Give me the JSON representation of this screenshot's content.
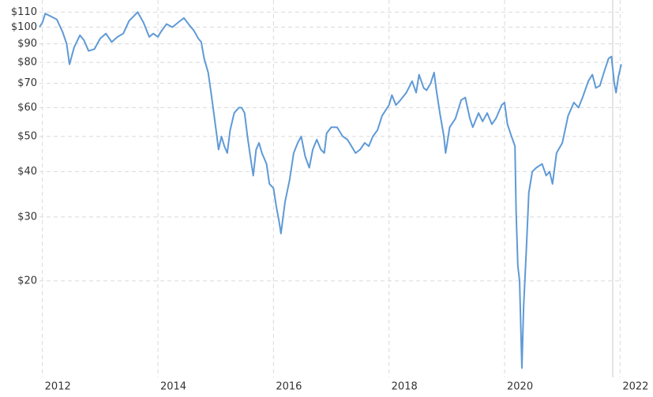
{
  "chart_data": {
    "type": "line",
    "log_scale": true,
    "grid": true,
    "color": "#5f9ad6",
    "x": [
      2011.95,
      2012.0,
      2012.05,
      2012.15,
      2012.25,
      2012.35,
      2012.42,
      2012.47,
      2012.55,
      2012.65,
      2012.72,
      2012.8,
      2012.9,
      2013.0,
      2013.1,
      2013.2,
      2013.3,
      2013.4,
      2013.5,
      2013.6,
      2013.65,
      2013.75,
      2013.85,
      2013.92,
      2014.0,
      2014.05,
      2014.15,
      2014.25,
      2014.35,
      2014.45,
      2014.55,
      2014.62,
      2014.7,
      2014.75,
      2014.8,
      2014.87,
      2014.92,
      2015.0,
      2015.05,
      2015.1,
      2015.15,
      2015.2,
      2015.25,
      2015.32,
      2015.4,
      2015.45,
      2015.5,
      2015.55,
      2015.6,
      2015.65,
      2015.7,
      2015.75,
      2015.8,
      2015.88,
      2015.93,
      2016.0,
      2016.05,
      2016.1,
      2016.13,
      2016.2,
      2016.28,
      2016.35,
      2016.42,
      2016.48,
      2016.55,
      2016.62,
      2016.68,
      2016.75,
      2016.82,
      2016.88,
      2016.92,
      2017.0,
      2017.1,
      2017.2,
      2017.28,
      2017.35,
      2017.42,
      2017.5,
      2017.58,
      2017.65,
      2017.72,
      2017.8,
      2017.88,
      2018.0,
      2018.05,
      2018.12,
      2018.2,
      2018.3,
      2018.4,
      2018.47,
      2018.52,
      2018.6,
      2018.65,
      2018.72,
      2018.78,
      2018.82,
      2018.88,
      2018.95,
      2018.98,
      2019.05,
      2019.15,
      2019.25,
      2019.32,
      2019.4,
      2019.45,
      2019.55,
      2019.62,
      2019.7,
      2019.78,
      2019.85,
      2019.95,
      2020.0,
      2020.05,
      2020.12,
      2020.18,
      2020.2,
      2020.23,
      2020.26,
      2020.3,
      2020.33,
      2020.38,
      2020.42,
      2020.48,
      2020.55,
      2020.65,
      2020.72,
      2020.78,
      2020.83,
      2020.9,
      2021.0,
      2021.1,
      2021.2,
      2021.28,
      2021.35,
      2021.45,
      2021.52,
      2021.58,
      2021.65,
      2021.72,
      2021.8,
      2021.85,
      2021.9,
      2021.93,
      2021.97,
      2022.02
    ],
    "values": [
      100,
      103,
      109,
      107,
      105,
      97,
      90,
      79,
      88,
      95,
      92,
      86,
      87,
      93,
      96,
      91,
      94,
      96,
      104,
      108,
      110,
      103,
      94,
      96,
      94,
      97,
      102,
      100,
      103,
      106,
      101,
      98,
      93,
      91,
      82,
      75,
      66,
      53,
      46,
      50,
      47,
      45,
      52,
      58,
      60,
      60,
      58,
      50,
      44,
      39,
      46,
      48,
      45,
      42,
      37,
      36,
      32,
      29,
      27,
      33,
      38,
      45,
      48,
      50,
      44,
      41,
      46,
      49,
      46,
      45,
      51,
      53,
      53,
      50,
      49,
      47,
      45,
      46,
      48,
      47,
      50,
      52,
      57,
      61,
      65,
      61,
      63,
      66,
      71,
      66,
      74,
      68,
      67,
      70,
      75,
      67,
      58,
      50,
      45,
      53,
      56,
      63,
      64,
      56,
      53,
      58,
      55,
      58,
      54,
      56,
      61,
      62,
      54,
      50,
      47,
      31,
      22,
      20,
      11.5,
      17,
      25,
      35,
      40,
      41,
      42,
      39,
      40,
      37,
      45,
      48,
      57,
      62,
      60,
      64,
      71,
      74,
      68,
      69,
      75,
      82,
      83,
      70,
      66,
      73,
      79
    ],
    "xlim": [
      2011.95,
      2022.05
    ],
    "xticks": [
      2012,
      2014,
      2016,
      2018,
      2020,
      2022
    ],
    "ylim": [
      10.85,
      113
    ],
    "yticks": [
      {
        "value": 20,
        "label": "$20"
      },
      {
        "value": 30,
        "label": "$30"
      },
      {
        "value": 40,
        "label": "$40"
      },
      {
        "value": 50,
        "label": "$50"
      },
      {
        "value": 60,
        "label": "$60"
      },
      {
        "value": 70,
        "label": "$70"
      },
      {
        "value": 80,
        "label": "$80"
      },
      {
        "value": 90,
        "label": "$90"
      },
      {
        "value": 100,
        "label": "$100"
      },
      {
        "value": 110,
        "label": "$110"
      }
    ]
  }
}
